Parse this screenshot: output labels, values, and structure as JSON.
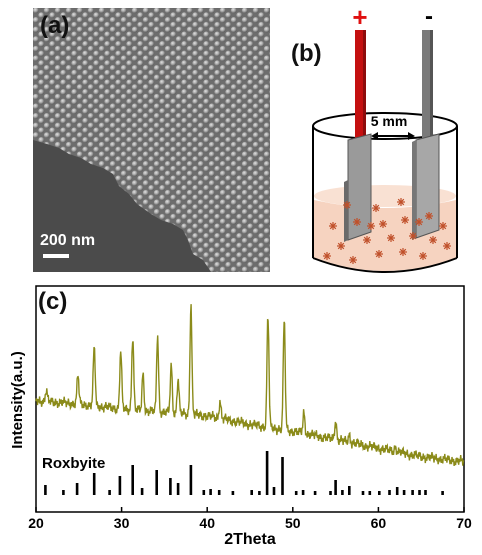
{
  "panel_a": {
    "label": "(a)",
    "scale_bar_label": "200 nm"
  },
  "panel_b": {
    "label": "(b)",
    "positive_sign": "+",
    "negative_sign": "-",
    "gap_label": "5 mm",
    "colors": {
      "anode": "#c41010",
      "cathode": "#7a7a7a",
      "electrolyte": "#f6d3c0",
      "particles": "#c0502a"
    }
  },
  "panel_c": {
    "label": "(c)",
    "reference_label": "Roxbyite"
  },
  "chart_data": {
    "type": "line",
    "xlabel": "2Theta",
    "ylabel": "Intensity(a.u.)",
    "xlim": [
      20,
      70
    ],
    "xticks": [
      20,
      30,
      40,
      50,
      60,
      70
    ],
    "ytick_labels_shown": false,
    "series": [
      {
        "color": "#8b8b1a",
        "baseline": [
          [
            20,
            0.42
          ],
          [
            25,
            0.4
          ],
          [
            30,
            0.37
          ],
          [
            35,
            0.35
          ],
          [
            40,
            0.33
          ],
          [
            45,
            0.28
          ],
          [
            50,
            0.24
          ],
          [
            55,
            0.19
          ],
          [
            60,
            0.14
          ],
          [
            65,
            0.09
          ],
          [
            70,
            0.06
          ]
        ],
        "peaks": [
          [
            21.2,
            0.48
          ],
          [
            24.9,
            0.57
          ],
          [
            26.8,
            0.73
          ],
          [
            29.9,
            0.71
          ],
          [
            31.3,
            0.8
          ],
          [
            32.5,
            0.58
          ],
          [
            34.2,
            0.81
          ],
          [
            35.8,
            0.63
          ],
          [
            36.6,
            0.55
          ],
          [
            38.1,
            0.99
          ],
          [
            41.5,
            0.42
          ],
          [
            47.1,
            0.92
          ],
          [
            49.0,
            0.9
          ],
          [
            51.3,
            0.35
          ],
          [
            55.0,
            0.3
          ],
          [
            56.6,
            0.22
          ],
          [
            62.0,
            0.15
          ]
        ]
      }
    ],
    "reference_pattern": {
      "name": "Roxbyite",
      "color": "#000000",
      "lines": [
        [
          21.1,
          0.1
        ],
        [
          23.2,
          0.05
        ],
        [
          24.8,
          0.12
        ],
        [
          26.8,
          0.22
        ],
        [
          28.6,
          0.05
        ],
        [
          29.8,
          0.19
        ],
        [
          31.3,
          0.3
        ],
        [
          32.4,
          0.07
        ],
        [
          34.1,
          0.25
        ],
        [
          35.7,
          0.17
        ],
        [
          36.6,
          0.12
        ],
        [
          38.1,
          0.3
        ],
        [
          39.6,
          0.05
        ],
        [
          40.4,
          0.06
        ],
        [
          41.4,
          0.05
        ],
        [
          43.0,
          0.04
        ],
        [
          45.2,
          0.05
        ],
        [
          46.1,
          0.04
        ],
        [
          47.0,
          0.44
        ],
        [
          47.8,
          0.08
        ],
        [
          48.8,
          0.38
        ],
        [
          50.4,
          0.04
        ],
        [
          51.2,
          0.05
        ],
        [
          52.6,
          0.04
        ],
        [
          54.4,
          0.04
        ],
        [
          55.0,
          0.15
        ],
        [
          55.8,
          0.05
        ],
        [
          56.6,
          0.09
        ],
        [
          58.2,
          0.04
        ],
        [
          59.0,
          0.04
        ],
        [
          60.1,
          0.04
        ],
        [
          61.3,
          0.05
        ],
        [
          62.2,
          0.08
        ],
        [
          63.0,
          0.05
        ],
        [
          64.0,
          0.05
        ],
        [
          64.8,
          0.05
        ],
        [
          65.5,
          0.05
        ],
        [
          67.5,
          0.04
        ]
      ]
    }
  }
}
